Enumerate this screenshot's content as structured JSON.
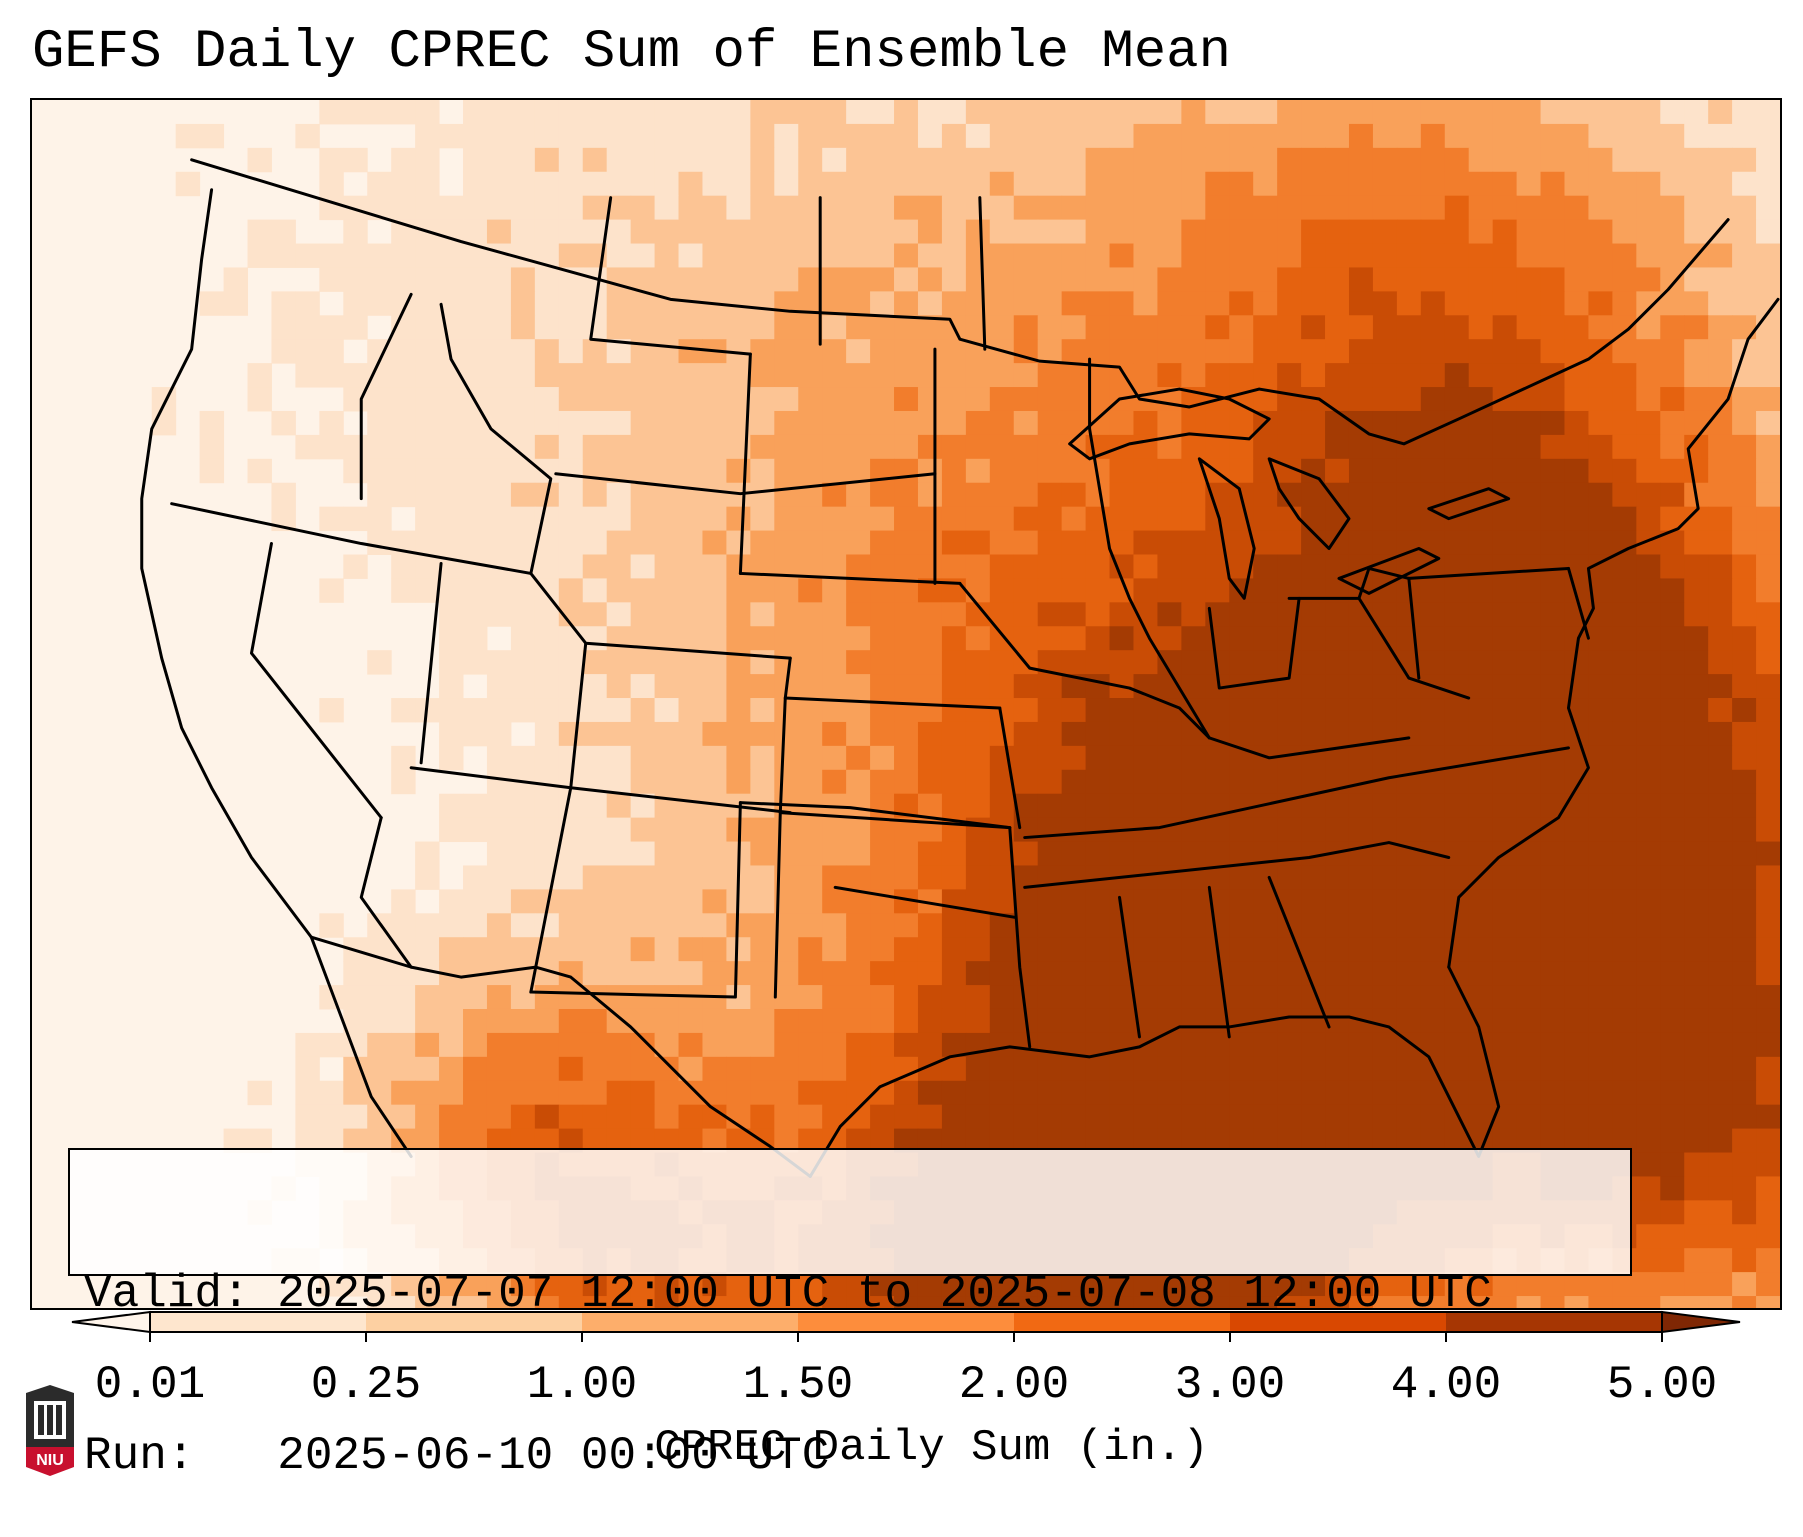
{
  "title": "GEFS Daily CPREC Sum of Ensemble Mean",
  "info": {
    "valid_line": "Valid: 2025-07-07 12:00 UTC to 2025-07-08 12:00 UTC",
    "run_line": "Run:   2025-06-10 00:00 UTC"
  },
  "colorbar": {
    "label": "CPREC Daily Sum (in.)",
    "ticks": [
      "0.01",
      "0.25",
      "1.00",
      "1.50",
      "2.00",
      "3.00",
      "4.00",
      "5.00"
    ],
    "colors": [
      "#fff5eb",
      "#fee6ce",
      "#fdd0a2",
      "#fdae6b",
      "#fd8d3c",
      "#f16913",
      "#d94801",
      "#a63603",
      "#7f2704"
    ],
    "extend": "both"
  },
  "logo": {
    "text": "NIU",
    "icon": "university-logo"
  },
  "map": {
    "projection": "lambert-conformal",
    "region": "CONUS",
    "fill_palette": [
      "#fef3e8",
      "#fde3cb",
      "#fcc494",
      "#f9a15a",
      "#f27d2c",
      "#e5620f",
      "#c94c05",
      "#a43b03"
    ]
  }
}
